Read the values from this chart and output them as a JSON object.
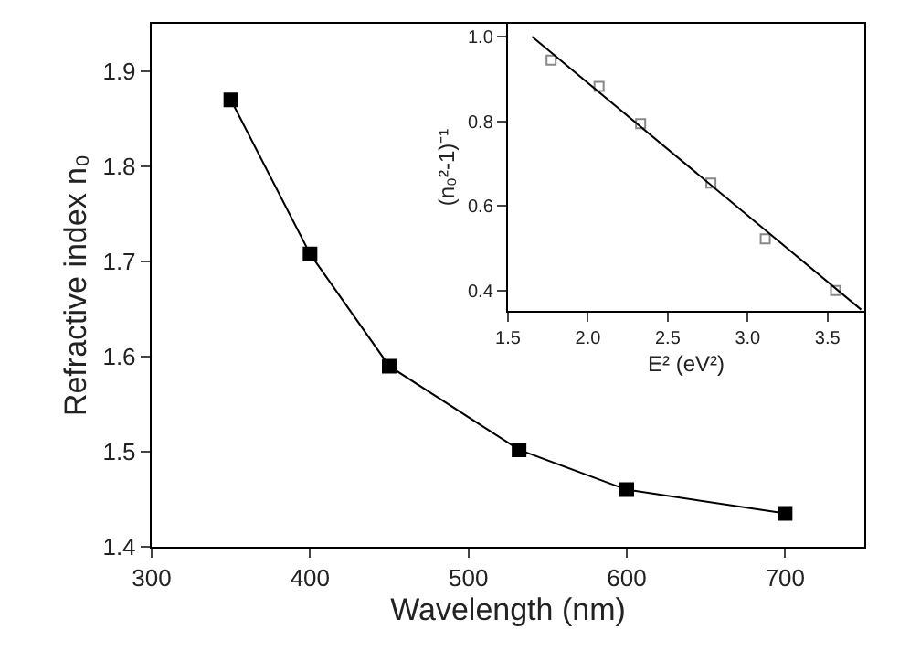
{
  "chart_data": [
    {
      "type": "line",
      "xlabel": "Wavelength (nm)",
      "ylabel": "Refractive index n₀",
      "x": [
        350,
        400,
        450,
        532,
        600,
        700
      ],
      "series": [
        {
          "color": "#000000",
          "values": [
            1.87,
            1.708,
            1.59,
            1.502,
            1.46,
            1.435
          ]
        }
      ],
      "xlim": [
        300,
        750
      ],
      "xticks": [
        300,
        400,
        500,
        600,
        700
      ],
      "ylim": [
        1.4,
        1.95
      ],
      "yticks": [
        1.4,
        1.5,
        1.6,
        1.7,
        1.8,
        1.9
      ],
      "marker": "square",
      "line_style": "solid"
    },
    {
      "type": "scatter",
      "xlabel": "E² (eV²)",
      "ylabel": "(n₀²-1)⁻¹",
      "series": [
        {
          "color": "#888888",
          "x": [
            1.77,
            2.07,
            2.33,
            2.77,
            3.11,
            3.55
          ],
          "values": [
            0.944,
            0.882,
            0.794,
            0.654,
            0.522,
            0.4
          ]
        },
        {
          "type": "line",
          "marker": "none",
          "color": "#000000",
          "x": [
            1.65,
            3.71
          ],
          "values": [
            1.0,
            0.355
          ]
        }
      ],
      "xlim": [
        1.5,
        3.73
      ],
      "xticks": [
        1.5,
        {
          "value": 2,
          "label": "2.0"
        },
        2.5,
        {
          "value": 3,
          "label": "3.0"
        },
        3.5
      ],
      "ylim": [
        0.352,
        1.03
      ],
      "yticks": [
        0.4,
        0.6,
        0.8,
        {
          "value": 1,
          "label": "1.0"
        }
      ],
      "marker": "square"
    }
  ]
}
